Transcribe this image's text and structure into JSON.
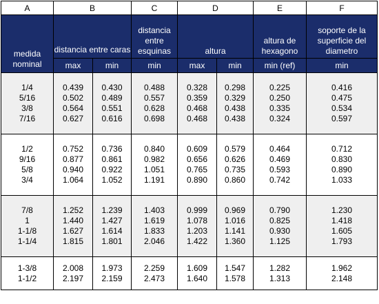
{
  "column_letters": [
    "A",
    "B",
    "C",
    "D",
    "E",
    "F"
  ],
  "headers": {
    "nominal": "medida nominal",
    "b": "distancia entre caras",
    "c": "distancia entre esquinas",
    "d": "altura",
    "e": "altura de hexagono",
    "f": "soporte de la superficie del diametro"
  },
  "subheaders": {
    "b_max": "max",
    "b_min": "min",
    "c_min": "min",
    "d_max": "max",
    "d_min": "min",
    "e_min": "min (ref)",
    "f_min": "min"
  },
  "groups": [
    {
      "nominal": [
        "1/4",
        "5/16",
        "3/8",
        "7/16"
      ],
      "b_max": [
        "0.439",
        "0.502",
        "0.564",
        "0.627"
      ],
      "b_min": [
        "0.430",
        "0.489",
        "0.551",
        "0.616"
      ],
      "c_min": [
        "0.488",
        "0.557",
        "0.628",
        "0.698"
      ],
      "d_max": [
        "0.328",
        "0.359",
        "0.468",
        "0.468"
      ],
      "d_min": [
        "0.298",
        "0.329",
        "0.438",
        "0.438"
      ],
      "e_min": [
        "0.225",
        "0.250",
        "0.335",
        "0.324"
      ],
      "f_min": [
        "0.416",
        "0.475",
        "0.534",
        "0.597"
      ]
    },
    {
      "nominal": [
        "1/2",
        "9/16",
        "5/8",
        "3/4"
      ],
      "b_max": [
        "0.752",
        "0.877",
        "0.940",
        "1.064"
      ],
      "b_min": [
        "0.736",
        "0.861",
        "0.922",
        "1.052"
      ],
      "c_min": [
        "0.840",
        "0.982",
        "1.051",
        "1.191"
      ],
      "d_max": [
        "0.609",
        "0.656",
        "0.765",
        "0.890"
      ],
      "d_min": [
        "0.579",
        "0.626",
        "0.735",
        "0.860"
      ],
      "e_min": [
        "0.464",
        "0.469",
        "0.593",
        "0.742"
      ],
      "f_min": [
        "0.712",
        "0.830",
        "0.890",
        "1.033"
      ]
    },
    {
      "nominal": [
        "7/8",
        "1",
        "1-1/8",
        "1-1/4"
      ],
      "b_max": [
        "1.252",
        "1.440",
        "1.627",
        "1.815"
      ],
      "b_min": [
        "1.239",
        "1.427",
        "1.614",
        "1.801"
      ],
      "c_min": [
        "1.403",
        "1.619",
        "1.833",
        "2.046"
      ],
      "d_max": [
        "0.999",
        "1.078",
        "1.203",
        "1.422"
      ],
      "d_min": [
        "0.969",
        "1.016",
        "1.141",
        "1.360"
      ],
      "e_min": [
        "0.790",
        "0.825",
        "0.930",
        "1.125"
      ],
      "f_min": [
        "1.230",
        "1.418",
        "1.605",
        "1.793"
      ]
    },
    {
      "nominal": [
        "1-3/8",
        "1-1/2"
      ],
      "b_max": [
        "2.008",
        "2.197"
      ],
      "b_min": [
        "1.973",
        "2.159"
      ],
      "c_min": [
        "2.259",
        "2.473"
      ],
      "d_max": [
        "1.609",
        "1.640"
      ],
      "d_min": [
        "1.547",
        "1.578"
      ],
      "e_min": [
        "1.282",
        "1.313"
      ],
      "f_min": [
        "1.962",
        "2.148"
      ]
    }
  ]
}
